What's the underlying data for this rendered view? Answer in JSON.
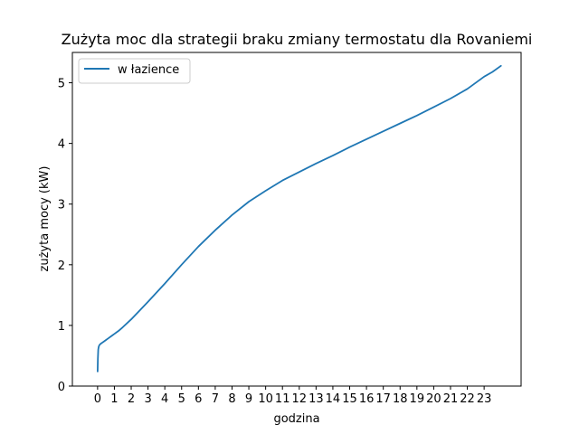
{
  "chart_data": {
    "type": "line",
    "title": "Zużyta moc dla strategii braku zmiany termostatu dla Rovaniemi",
    "xlabel": "godzina",
    "ylabel": "zużyta mocy (kW)",
    "xlim": [
      -1.5,
      25.2
    ],
    "ylim": [
      0,
      5.5
    ],
    "xticks": [
      0,
      1,
      2,
      3,
      4,
      5,
      6,
      7,
      8,
      9,
      10,
      11,
      12,
      13,
      14,
      15,
      16,
      17,
      18,
      19,
      20,
      21,
      22,
      23
    ],
    "yticks": [
      0,
      1,
      2,
      3,
      4,
      5
    ],
    "grid": false,
    "legend_position": "top-left",
    "series": [
      {
        "name": "w łazience",
        "color": "#1f77b4",
        "x": [
          0.0,
          0.02,
          0.04,
          0.06,
          0.08,
          0.1,
          0.15,
          0.2,
          0.3,
          0.4,
          0.5,
          0.6,
          0.7,
          0.8,
          0.9,
          1.0,
          1.25,
          1.5,
          2,
          3,
          4,
          5,
          6,
          7,
          8,
          9,
          10,
          11,
          12,
          13,
          14,
          15,
          16,
          17,
          18,
          19,
          20,
          21,
          22,
          23,
          23.5,
          24.0
        ],
        "y": [
          0.24,
          0.45,
          0.6,
          0.64,
          0.66,
          0.67,
          0.69,
          0.7,
          0.72,
          0.74,
          0.76,
          0.78,
          0.8,
          0.82,
          0.84,
          0.86,
          0.91,
          0.97,
          1.1,
          1.39,
          1.69,
          2.0,
          2.3,
          2.57,
          2.82,
          3.04,
          3.22,
          3.39,
          3.53,
          3.67,
          3.8,
          3.94,
          4.07,
          4.2,
          4.33,
          4.46,
          4.6,
          4.74,
          4.9,
          5.1,
          5.18,
          5.28
        ]
      }
    ]
  }
}
